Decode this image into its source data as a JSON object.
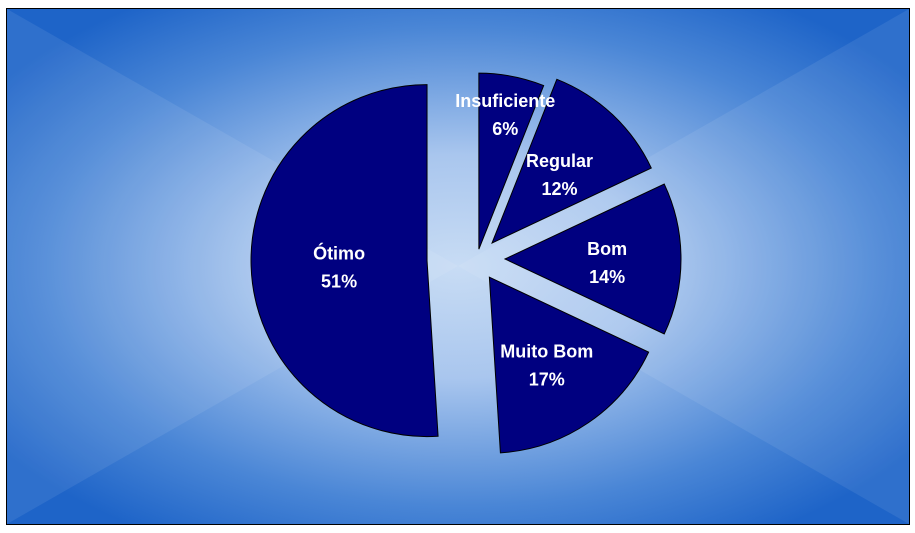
{
  "chart_data": {
    "type": "pie",
    "title": "",
    "exploded": true,
    "slices": [
      {
        "label": "Insuficiente",
        "value": 6,
        "display": "6%"
      },
      {
        "label": "Regular",
        "value": 12,
        "display": "12%"
      },
      {
        "label": "Bom",
        "value": 14,
        "display": "14%"
      },
      {
        "label": "Muito Bom",
        "value": 17,
        "display": "17%"
      },
      {
        "label": "Ótimo",
        "value": 51,
        "display": "51%"
      }
    ]
  },
  "colors": {
    "slice_fill": "#000080",
    "slice_stroke": "#000000",
    "label_text": "#ffffff",
    "background_center": "#c8dcf4",
    "background_edge": "#1e64c8",
    "frame_border": "#000000"
  }
}
